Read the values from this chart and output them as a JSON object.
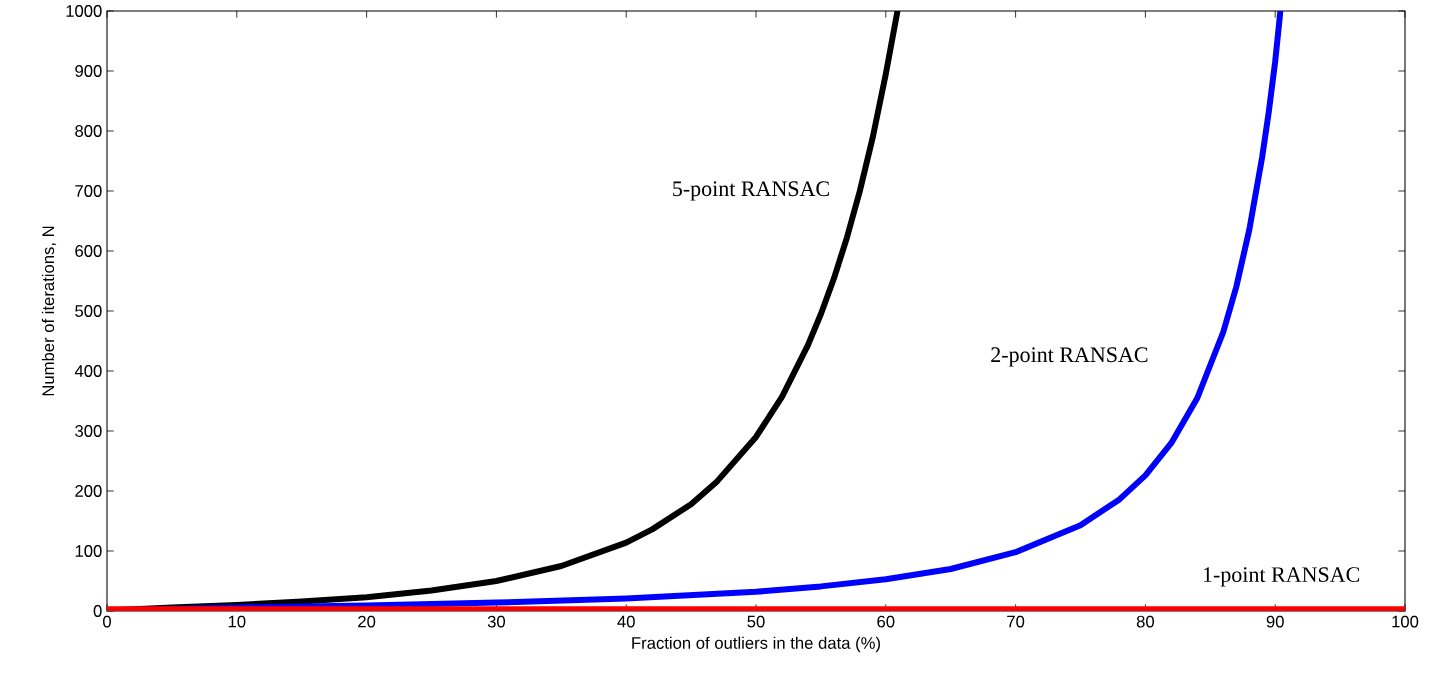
{
  "chart_data": {
    "type": "line",
    "xlabel": "Fraction of outliers in the data (%)",
    "ylabel": "Number of iterations, N",
    "xlim": [
      0,
      100
    ],
    "ylim": [
      0,
      1000
    ],
    "xticks": [
      0,
      10,
      20,
      30,
      40,
      50,
      60,
      70,
      80,
      90,
      100
    ],
    "yticks": [
      0,
      100,
      200,
      300,
      400,
      500,
      600,
      700,
      800,
      900,
      1000
    ],
    "grid": false,
    "marker": "none",
    "line_style": "solid",
    "series": [
      {
        "name": "5-point RANSAC",
        "color": "#000000",
        "x": [
          0,
          5,
          10,
          15,
          20,
          25,
          30,
          35,
          40,
          42,
          45,
          47,
          50,
          52,
          54,
          55,
          56,
          57,
          58,
          59,
          60,
          60.9
        ],
        "values": [
          1,
          6,
          10,
          16,
          23,
          34,
          50,
          75,
          114,
          136,
          178,
          216,
          290,
          357,
          443,
          495,
          554,
          622,
          700,
          790,
          895,
          1000
        ]
      },
      {
        "name": "2-point RANSAC",
        "color": "#0000ff",
        "x": [
          0,
          10,
          20,
          30,
          40,
          50,
          55,
          60,
          65,
          70,
          75,
          78,
          80,
          82,
          84,
          86,
          87,
          88,
          89,
          89.5,
          90,
          90.4
        ],
        "values": [
          1,
          6,
          9,
          14,
          21,
          32,
          41,
          53,
          70,
          98,
          143,
          186,
          226,
          280,
          355,
          465,
          540,
          635,
          757,
          831,
          916,
          1000
        ]
      },
      {
        "name": "1-point RANSAC",
        "color": "#ff0000",
        "x": [
          0,
          100
        ],
        "values": [
          3,
          3
        ]
      }
    ]
  }
}
